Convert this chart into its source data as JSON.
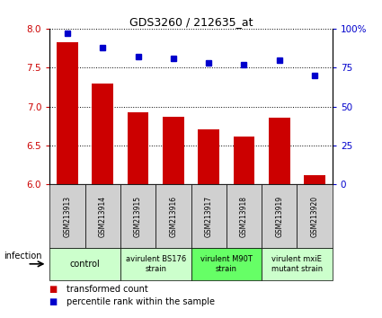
{
  "title": "GDS3260 / 212635_at",
  "samples": [
    "GSM213913",
    "GSM213914",
    "GSM213915",
    "GSM213916",
    "GSM213917",
    "GSM213918",
    "GSM213919",
    "GSM213920"
  ],
  "transformed_count": [
    7.82,
    7.29,
    6.93,
    6.87,
    6.71,
    6.62,
    6.86,
    6.12
  ],
  "percentile_rank": [
    97,
    88,
    82,
    81,
    78,
    77,
    80,
    70
  ],
  "ylim_left": [
    6,
    8
  ],
  "ylim_right": [
    0,
    100
  ],
  "yticks_left": [
    6.0,
    6.5,
    7.0,
    7.5,
    8.0
  ],
  "yticks_right": [
    0,
    25,
    50,
    75,
    100
  ],
  "bar_color": "#cc0000",
  "dot_color": "#0000cc",
  "bar_width": 0.6,
  "group_boundaries": [
    {
      "start": 0,
      "end": 1,
      "label": "control",
      "color": "#ccffcc"
    },
    {
      "start": 2,
      "end": 3,
      "label": "avirulent BS176\nstrain",
      "color": "#ccffcc"
    },
    {
      "start": 4,
      "end": 5,
      "label": "virulent M90T\nstrain",
      "color": "#66ff66"
    },
    {
      "start": 6,
      "end": 7,
      "label": "virulent mxiE\nmutant strain",
      "color": "#ccffcc"
    }
  ],
  "legend": [
    {
      "color": "#cc0000",
      "label": "transformed count"
    },
    {
      "color": "#0000cc",
      "label": "percentile rank within the sample"
    }
  ]
}
